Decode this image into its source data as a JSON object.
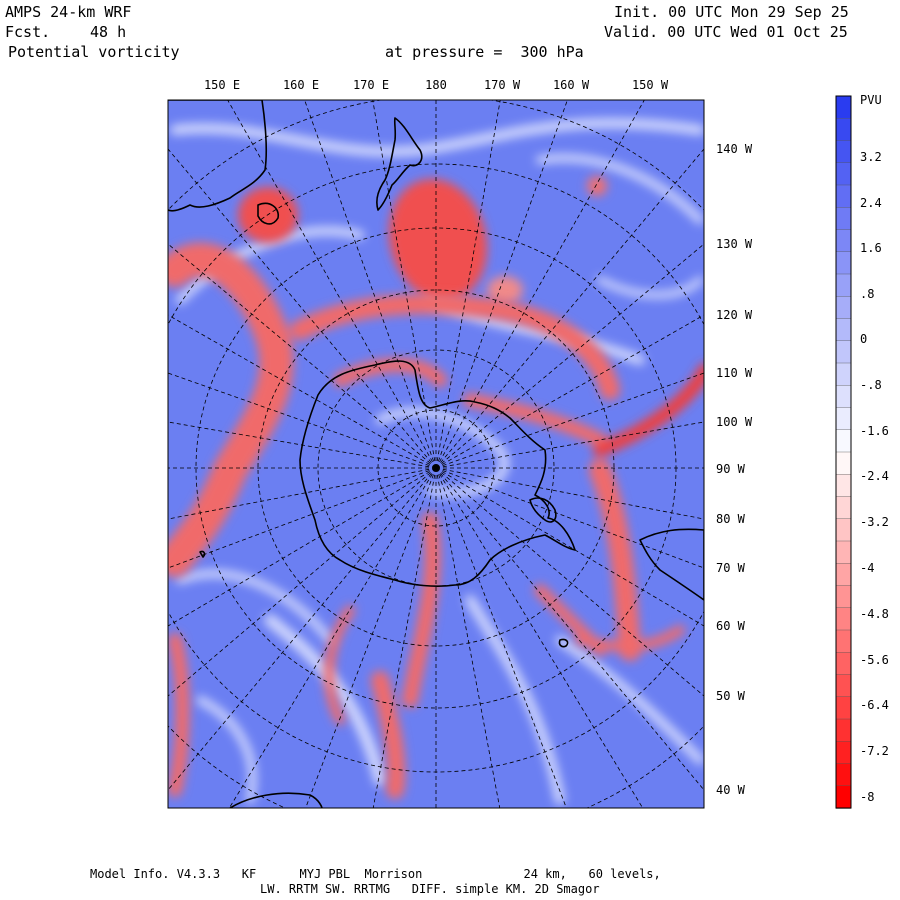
{
  "header": {
    "model": "AMPS 24-km WRF",
    "forecast_label": "Fcst.",
    "forecast_value": "48 h",
    "field": "Potential vorticity",
    "init": "Init. 00 UTC Mon 29 Sep 25",
    "valid": "Valid. 00 UTC Wed 01 Oct 25",
    "level": "at pressure =  300 hPa"
  },
  "longitude_labels_top": [
    "150 E",
    "160 E",
    "170 E",
    "180",
    "170 W",
    "160 W",
    "150 W"
  ],
  "longitude_labels_right": [
    "140 W",
    "130 W",
    "120 W",
    "110 W",
    "100 W",
    "90 W",
    "80 W",
    "70 W",
    "60 W",
    "50 W",
    "40 W"
  ],
  "colorbar": {
    "unit": "PVU",
    "labels": [
      "3.2",
      "2.4",
      "1.6",
      ".8",
      "0",
      "-.8",
      "-1.6",
      "-2.4",
      "-3.2",
      "-4",
      "-4.8",
      "-5.6",
      "-6.4",
      "-7.2",
      "-8"
    ],
    "positive_color": "#2a3cf0",
    "negative_color": "#ff0000",
    "mid_color": "#ffffff"
  },
  "footer": {
    "line1": "Model Info. V4.3.3   KF      MYJ PBL  Morrison              24 km,   60 levels,",
    "line2": "LW. RRTM SW. RRTMG   DIFF. simple KM. 2D Smagor"
  },
  "colors": {
    "background_field": "#6b7ff2",
    "high_pv": "#f05a5a",
    "coast": "#000000"
  }
}
